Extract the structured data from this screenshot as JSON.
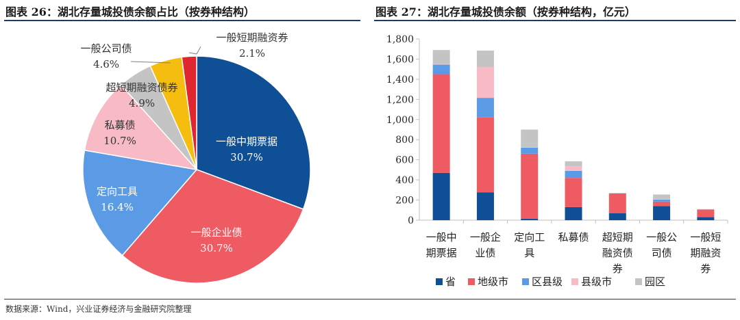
{
  "left_title": "图表 26：湖北存量城投债余额占比（按券种结构）",
  "right_title": "图表 27：湖北存量城投债余额（按券种结构，亿元）",
  "source": "数据来源：Wind，兴业证券经济与金融研究院整理",
  "chart_data": [
    {
      "type": "pie",
      "slices": [
        {
          "name": "一般中期票据",
          "value": 30.7,
          "label": "30.7%",
          "color": "#0e4f96"
        },
        {
          "name": "一般企业债",
          "value": 30.7,
          "label": "30.7%",
          "color": "#ef5b63"
        },
        {
          "name": "定向工具",
          "value": 16.4,
          "label": "16.4%",
          "color": "#5b9be6"
        },
        {
          "name": "私募债",
          "value": 10.7,
          "label": "10.7%",
          "color": "#f8bac5"
        },
        {
          "name": "超短期融资债券",
          "value": 4.9,
          "label": "4.9%",
          "color": "#c4c4c4"
        },
        {
          "name": "一般公司债",
          "value": 4.6,
          "label": "4.6%",
          "color": "#f6bd11"
        },
        {
          "name": "一般短期融资券",
          "value": 2.1,
          "label": "2.1%",
          "color": "#e0262e"
        }
      ]
    },
    {
      "type": "bar",
      "stacked": true,
      "categories": [
        [
          "一般中",
          "期票据"
        ],
        [
          "一般企",
          "业债"
        ],
        [
          "定向工",
          "具"
        ],
        [
          "私募债"
        ],
        [
          "超短期",
          "融资债",
          "券"
        ],
        [
          "一般公",
          "司债"
        ],
        [
          "一般短",
          "期融资",
          "券"
        ]
      ],
      "series": [
        {
          "name": "省",
          "color": "#0e4f96",
          "values": [
            470,
            275,
            15,
            130,
            70,
            140,
            30
          ]
        },
        {
          "name": "地级市",
          "color": "#ef5b63",
          "values": [
            980,
            745,
            645,
            290,
            195,
            45,
            75
          ]
        },
        {
          "name": "区县级",
          "color": "#5b9be6",
          "values": [
            95,
            195,
            60,
            70,
            0,
            20,
            0
          ]
        },
        {
          "name": "县级市",
          "color": "#f8bac5",
          "values": [
            10,
            305,
            5,
            45,
            0,
            5,
            0
          ]
        },
        {
          "name": "园区",
          "color": "#c4c4c4",
          "values": [
            135,
            165,
            175,
            50,
            5,
            45,
            5
          ]
        }
      ],
      "ylim": [
        0,
        1800
      ],
      "yticks": [
        "0",
        "200",
        "400",
        "600",
        "800",
        "1,000",
        "1,200",
        "1,400",
        "1,600",
        "1,800"
      ],
      "legend_position": "bottom"
    }
  ]
}
